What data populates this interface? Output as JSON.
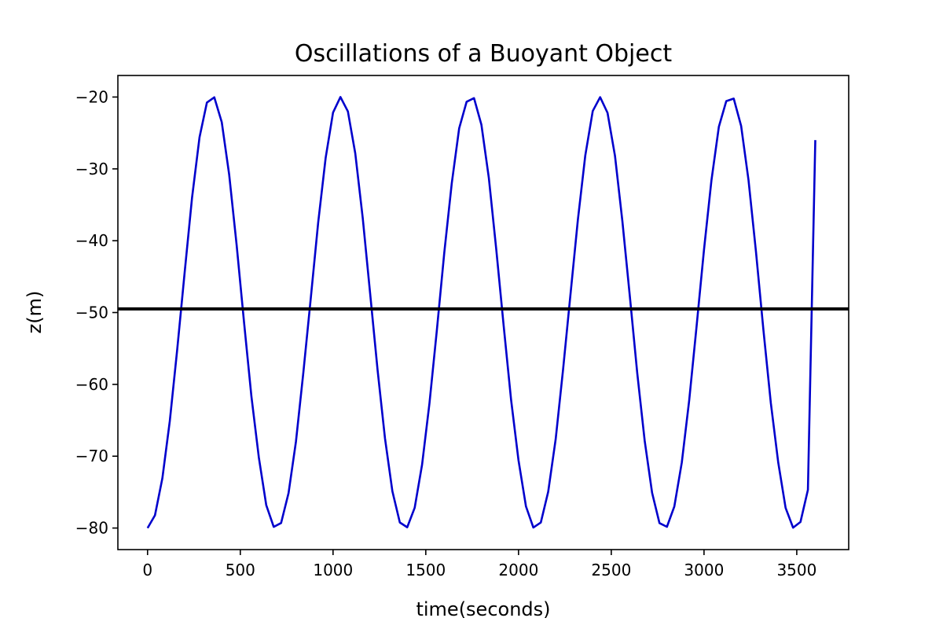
{
  "chart_data": {
    "type": "line",
    "title": "Oscillations of a Buoyant Object",
    "xlabel": "time(seconds)",
    "ylabel": "z(m)",
    "xlim": [
      -160,
      3780
    ],
    "ylim": [
      -83,
      -17
    ],
    "xticks": [
      0,
      500,
      1000,
      1500,
      2000,
      2500,
      3000,
      3500
    ],
    "yticks": [
      -20,
      -30,
      -40,
      -50,
      -60,
      -70,
      -80
    ],
    "ytick_labels": [
      "−20",
      "−30",
      "−40",
      "−50",
      "−60",
      "−70",
      "−80"
    ],
    "grid": false,
    "series": [
      {
        "color": "#0000cc",
        "x": [
          0,
          40,
          80,
          120,
          160,
          200,
          240,
          280,
          320,
          360,
          400,
          440,
          480,
          520,
          560,
          600,
          640,
          680,
          720,
          760,
          800,
          840,
          880,
          920,
          960,
          1000,
          1040,
          1080,
          1120,
          1160,
          1200,
          1240,
          1280,
          1320,
          1360,
          1400,
          1440,
          1480,
          1520,
          1560,
          1600,
          1640,
          1680,
          1720,
          1760,
          1800,
          1840,
          1880,
          1920,
          1960,
          2000,
          2040,
          2080,
          2120,
          2160,
          2200,
          2240,
          2280,
          2320,
          2360,
          2400,
          2440,
          2480,
          2520,
          2560,
          2600,
          2640,
          2680,
          2720,
          2760,
          2800,
          2840,
          2880,
          2920,
          2960,
          3000,
          3040,
          3080,
          3120,
          3160,
          3200,
          3240,
          3280,
          3320,
          3360,
          3400,
          3440,
          3480,
          3520,
          3560,
          3600
        ],
        "y": [
          -80.0,
          -78.23,
          -73.08,
          -65.08,
          -55.15,
          -44.4,
          -34.0,
          -25.6,
          -20.77,
          -20.04,
          -23.5,
          -30.77,
          -40.58,
          -51.3,
          -61.65,
          -70.18,
          -76.81,
          -79.84,
          -79.3,
          -75.13,
          -67.97,
          -58.37,
          -47.97,
          -37.47,
          -28.47,
          -22.17,
          -20.0,
          -22.0,
          -27.85,
          -36.85,
          -47.33,
          -58.02,
          -67.5,
          -74.87,
          -79.22,
          -79.89,
          -77.18,
          -71.18,
          -62.64,
          -52.36,
          -41.63,
          -32.0,
          -24.36,
          -20.66,
          -20.15,
          -23.85,
          -31.3,
          -41.2,
          -51.91,
          -62.17,
          -70.55,
          -76.98,
          -79.92,
          -79.24,
          -74.94,
          -67.64,
          -57.97,
          -47.54,
          -37.06,
          -28.13,
          -21.95,
          -20.02,
          -22.2,
          -28.2,
          -37.28,
          -47.75,
          -58.42,
          -67.86,
          -75.09,
          -79.31,
          -79.83,
          -77.0,
          -70.88,
          -62.25,
          -51.94,
          -41.21,
          -31.63,
          -24.12,
          -20.57,
          -20.22,
          -24.02,
          -31.56,
          -41.53,
          -52.34,
          -62.59,
          -70.85,
          -77.19,
          -79.95,
          -79.16,
          -74.68,
          -26.0
        ]
      },
      {
        "color": "#000000",
        "x": [
          -160,
          3780
        ],
        "y": [
          -49.5,
          -49.5
        ]
      }
    ]
  }
}
